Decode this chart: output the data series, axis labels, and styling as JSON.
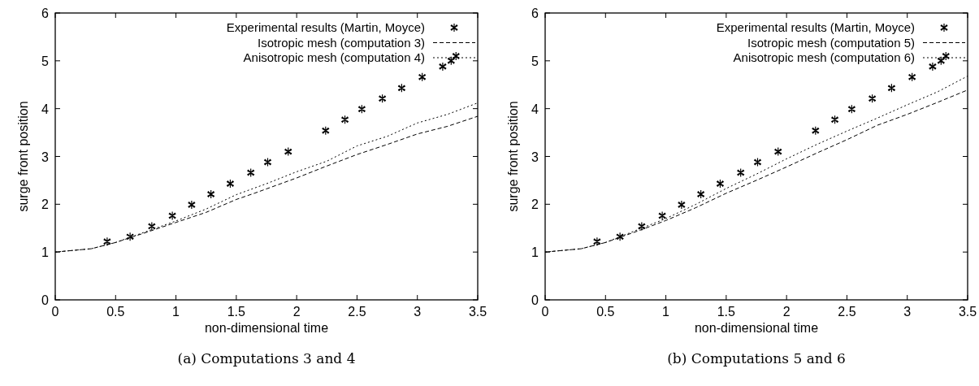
{
  "chart_data": [
    {
      "type": "line",
      "xlabel": "non-dimensional time",
      "ylabel": "surge front position",
      "annotations": [
        "(a) Computations 3 and 4"
      ],
      "xlim": [
        0,
        3.5
      ],
      "ylim": [
        0,
        6
      ],
      "xticks": [
        0,
        0.5,
        1,
        1.5,
        2,
        2.5,
        3,
        3.5
      ],
      "yticks": [
        0,
        1,
        2,
        3,
        4,
        5,
        6
      ],
      "legend": "top right",
      "grid": false,
      "series": [
        {
          "name": "Experimental results (Martin, Moyce)",
          "type": "scatter",
          "marker": "cross",
          "color": "#000000",
          "x": [
            0.43,
            0.62,
            0.8,
            0.97,
            1.13,
            1.29,
            1.45,
            1.62,
            1.76,
            1.93,
            2.24,
            2.4,
            2.54,
            2.71,
            2.87,
            3.04,
            3.21,
            3.28,
            3.32
          ],
          "values": [
            1.22,
            1.32,
            1.54,
            1.76,
            1.99,
            2.21,
            2.43,
            2.66,
            2.88,
            3.1,
            3.54,
            3.77,
            3.99,
            4.21,
            4.43,
            4.66,
            4.88,
            5.0,
            5.1
          ]
        },
        {
          "name": "Isotropic mesh (computation 3)",
          "type": "line",
          "line_style": "dashed",
          "color": "#000000",
          "x": [
            0,
            0.3,
            0.5,
            0.8,
            1,
            1.25,
            1.5,
            1.65,
            2,
            2.25,
            2.5,
            2.75,
            3,
            3.25,
            3.5
          ],
          "values": [
            1,
            1.07,
            1.2,
            1.45,
            1.62,
            1.83,
            2.1,
            2.23,
            2.55,
            2.8,
            3.04,
            3.25,
            3.47,
            3.63,
            3.84
          ]
        },
        {
          "name": "Anisotropic mesh (computation 4)",
          "type": "line",
          "line_style": "dotted",
          "color": "#000000",
          "x": [
            0,
            0.3,
            0.5,
            0.8,
            1,
            1.25,
            1.5,
            1.75,
            2,
            2.25,
            2.5,
            2.75,
            3,
            3.25,
            3.5
          ],
          "values": [
            1,
            1.07,
            1.2,
            1.47,
            1.65,
            1.9,
            2.2,
            2.43,
            2.68,
            2.9,
            3.22,
            3.42,
            3.7,
            3.88,
            4.12
          ]
        }
      ]
    },
    {
      "type": "line",
      "xlabel": "non-dimensional time",
      "ylabel": "surge front position",
      "annotations": [
        "(b) Computations 5 and 6"
      ],
      "xlim": [
        0,
        3.5
      ],
      "ylim": [
        0,
        6
      ],
      "xticks": [
        0,
        0.5,
        1,
        1.5,
        2,
        2.5,
        3,
        3.5
      ],
      "yticks": [
        0,
        1,
        2,
        3,
        4,
        5,
        6
      ],
      "legend": "top right",
      "grid": false,
      "series": [
        {
          "name": "Experimental results (Martin, Moyce)",
          "type": "scatter",
          "marker": "cross",
          "color": "#000000",
          "x": [
            0.43,
            0.62,
            0.8,
            0.97,
            1.13,
            1.29,
            1.45,
            1.62,
            1.76,
            1.93,
            2.24,
            2.4,
            2.54,
            2.71,
            2.87,
            3.04,
            3.21,
            3.28,
            3.32
          ],
          "values": [
            1.22,
            1.32,
            1.54,
            1.76,
            1.99,
            2.21,
            2.43,
            2.66,
            2.88,
            3.1,
            3.54,
            3.77,
            3.99,
            4.21,
            4.43,
            4.66,
            4.88,
            5.0,
            5.1
          ]
        },
        {
          "name": "Isotropic mesh (computation 5)",
          "type": "line",
          "line_style": "dashed",
          "color": "#000000",
          "x": [
            0,
            0.3,
            0.5,
            0.8,
            1,
            1.25,
            1.5,
            1.75,
            2,
            2.25,
            2.5,
            2.75,
            3,
            3.25,
            3.5
          ],
          "values": [
            1,
            1.07,
            1.2,
            1.47,
            1.66,
            1.93,
            2.23,
            2.5,
            2.78,
            3.07,
            3.35,
            3.65,
            3.88,
            4.13,
            4.39
          ]
        },
        {
          "name": "Anisotropic mesh (computation 6)",
          "type": "line",
          "line_style": "dotted",
          "color": "#000000",
          "x": [
            0,
            0.3,
            0.5,
            0.8,
            1,
            1.25,
            1.5,
            1.75,
            2,
            2.25,
            2.5,
            2.75,
            3,
            3.25,
            3.5
          ],
          "values": [
            1,
            1.07,
            1.2,
            1.5,
            1.7,
            2.0,
            2.33,
            2.63,
            2.95,
            3.25,
            3.53,
            3.8,
            4.08,
            4.35,
            4.68
          ]
        }
      ]
    }
  ]
}
